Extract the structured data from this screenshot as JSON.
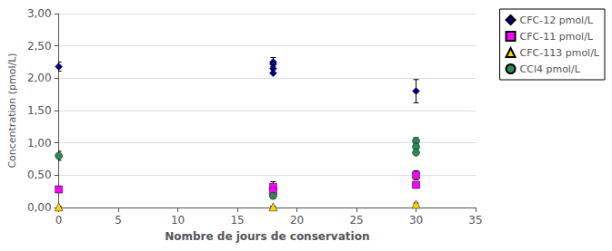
{
  "chart_data": {
    "type": "scatter",
    "xlabel": "Nombre de jours de conservation",
    "ylabel": "Concentration (pmol/L)",
    "xlim": [
      0,
      35
    ],
    "ylim": [
      0.0,
      3.0
    ],
    "xticks": [
      0,
      5,
      10,
      15,
      20,
      25,
      30,
      35
    ],
    "yticks": [
      {
        "value": 0.0,
        "label": "0,00"
      },
      {
        "value": 0.5,
        "label": "0,50"
      },
      {
        "value": 1.0,
        "label": "1,00"
      },
      {
        "value": 1.5,
        "label": "1,50"
      },
      {
        "value": 2.0,
        "label": "2,00"
      },
      {
        "value": 2.5,
        "label": "2,50"
      },
      {
        "value": 3.0,
        "label": "3,00"
      }
    ],
    "grid": true,
    "legend": "upper right",
    "series": [
      {
        "name": "CFC-12 pmol/L",
        "color": "#00008B",
        "marker": "diamond",
        "x": [
          0,
          18,
          18,
          18,
          18,
          30
        ],
        "values": [
          2.18,
          2.25,
          2.22,
          2.15,
          2.08,
          1.8
        ],
        "yerr": [
          0.07,
          0.07,
          null,
          null,
          null,
          0.18
        ]
      },
      {
        "name": "CFC-11 pmol/L",
        "color": "#FF00FF",
        "marker": "square",
        "x": [
          0,
          18,
          18,
          30,
          30
        ],
        "values": [
          0.28,
          0.32,
          0.25,
          0.5,
          0.35
        ],
        "yerr": [
          0.05,
          0.08,
          null,
          0.07,
          null
        ]
      },
      {
        "name": "CFC-113 pmol/L",
        "color": "#FFD700",
        "marker": "triangle",
        "x": [
          0,
          18,
          30
        ],
        "values": [
          0.01,
          0.01,
          0.05
        ],
        "yerr": [
          0.01,
          0.01,
          0.02
        ]
      },
      {
        "name": "CCl4 pmol/L",
        "color": "#2E8B57",
        "marker": "circle",
        "x": [
          0,
          18,
          30,
          30,
          30
        ],
        "values": [
          0.8,
          0.18,
          1.03,
          0.94,
          0.85
        ],
        "yerr": [
          0.07,
          0.04,
          0.05,
          null,
          null
        ]
      }
    ]
  }
}
